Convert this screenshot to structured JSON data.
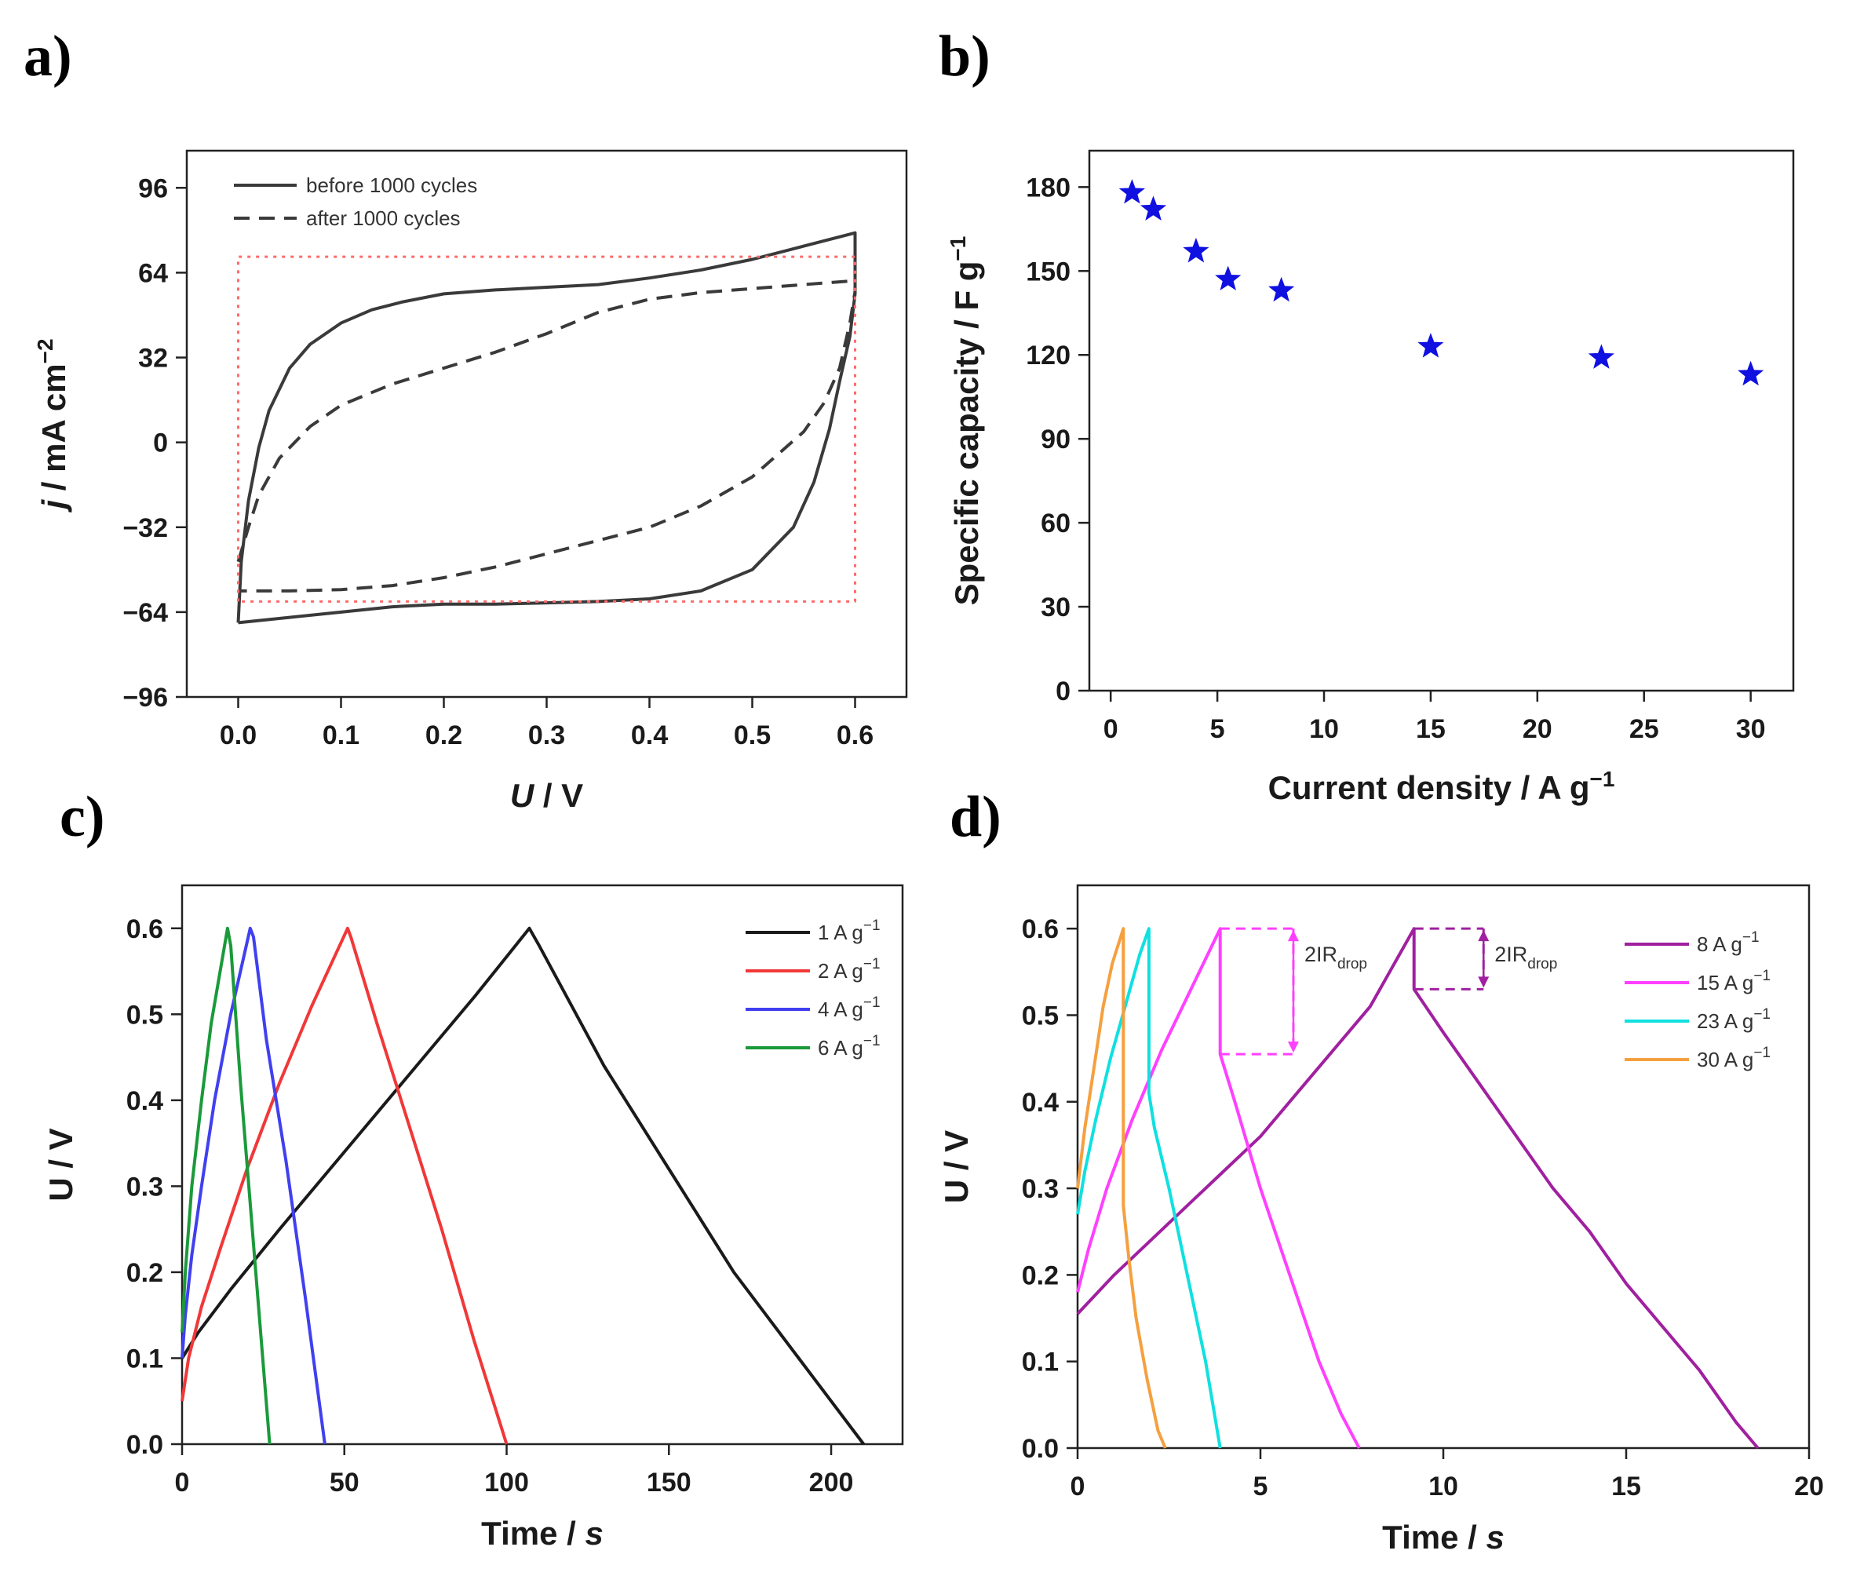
{
  "figure": {
    "panels": [
      {
        "id": "a",
        "label": "a)"
      },
      {
        "id": "b",
        "label": "b)"
      },
      {
        "id": "c",
        "label": "c)"
      },
      {
        "id": "d",
        "label": "d)"
      }
    ]
  },
  "chart_data": [
    {
      "id": "a",
      "type": "line",
      "title": "",
      "xlabel_italic": "U",
      "xlabel_rest": " / V",
      "ylabel_italic": "j",
      "ylabel_rest": " / mA cm",
      "ylabel_sup": "−2",
      "xlim": [
        -0.05,
        0.65
      ],
      "ylim": [
        -96,
        110
      ],
      "xticks": [
        0.0,
        0.1,
        0.2,
        0.3,
        0.4,
        0.5,
        0.6
      ],
      "xtick_labels": [
        "0.0",
        "0.1",
        "0.2",
        "0.3",
        "0.4",
        "0.5",
        "0.6"
      ],
      "yticks": [
        -96,
        -64,
        -32,
        0,
        32,
        64,
        96
      ],
      "ytick_labels": [
        "−96",
        "−64",
        "−32",
        "0",
        "32",
        "64",
        "96"
      ],
      "legend_position": "top-left",
      "series": [
        {
          "name": "before 1000 cycles",
          "color": "#3a3a3a",
          "dash": "solid",
          "x": [
            0.0,
            0.003,
            0.01,
            0.02,
            0.03,
            0.05,
            0.07,
            0.1,
            0.13,
            0.16,
            0.2,
            0.25,
            0.3,
            0.35,
            0.4,
            0.45,
            0.5,
            0.55,
            0.6,
            0.6,
            0.595,
            0.585,
            0.575,
            0.56,
            0.54,
            0.5,
            0.45,
            0.4,
            0.35,
            0.3,
            0.25,
            0.2,
            0.15,
            0.1,
            0.05,
            0.0
          ],
          "y": [
            -68,
            -45,
            -22,
            -2,
            12,
            28,
            37,
            45,
            50,
            53,
            56,
            57.5,
            58.5,
            59.5,
            62,
            65,
            69,
            74,
            79,
            56,
            40,
            23,
            5,
            -15,
            -32,
            -48,
            -56,
            -59,
            -60,
            -60.5,
            -61,
            -61,
            -62,
            -64,
            -66,
            -68
          ]
        },
        {
          "name": "after 1000 cycles",
          "color": "#3a3a3a",
          "dash": "dashed",
          "x": [
            0.0,
            0.01,
            0.02,
            0.04,
            0.07,
            0.1,
            0.15,
            0.2,
            0.25,
            0.3,
            0.35,
            0.4,
            0.45,
            0.5,
            0.55,
            0.6,
            0.6,
            0.595,
            0.585,
            0.57,
            0.55,
            0.5,
            0.45,
            0.4,
            0.35,
            0.3,
            0.25,
            0.2,
            0.15,
            0.1,
            0.05,
            0.0
          ],
          "y": [
            -45,
            -32,
            -20,
            -6,
            6,
            14,
            22,
            28,
            34,
            41,
            49,
            54,
            56.5,
            58,
            59.5,
            61,
            57,
            45,
            28,
            15,
            4,
            -13,
            -24,
            -32,
            -37,
            -42,
            -47,
            -51,
            -54,
            -55.5,
            -56,
            -56
          ]
        },
        {
          "name": "",
          "color": "#ff6a6a",
          "dash": "dotted",
          "x": [
            0.0,
            0.0,
            0.6,
            0.6,
            0.0
          ],
          "y": [
            -60,
            70,
            70,
            -60,
            -60
          ]
        }
      ]
    },
    {
      "id": "b",
      "type": "scatter",
      "title": "",
      "xlabel": "Current density / A g",
      "xlabel_sup": "−1",
      "ylabel": "Specific capacity / F g",
      "ylabel_sup": "−1",
      "xlim": [
        -1,
        32
      ],
      "ylim": [
        0,
        193
      ],
      "xticks": [
        0,
        5,
        10,
        15,
        20,
        25,
        30
      ],
      "xtick_labels": [
        "0",
        "5",
        "10",
        "15",
        "20",
        "25",
        "30"
      ],
      "yticks": [
        0,
        30,
        60,
        90,
        120,
        150,
        180
      ],
      "ytick_labels": [
        "0",
        "30",
        "60",
        "90",
        "120",
        "150",
        "180"
      ],
      "marker": "star",
      "color": "#1010e0",
      "points": {
        "x": [
          1,
          2,
          4,
          5.5,
          8,
          15,
          23,
          30
        ],
        "y": [
          178,
          172,
          157,
          147,
          143,
          123,
          119,
          113
        ]
      }
    },
    {
      "id": "c",
      "type": "line",
      "title": "",
      "xlabel_main": "Time / ",
      "xlabel_italic": "s",
      "ylabel": "U / V",
      "xlim": [
        0,
        222
      ],
      "ylim": [
        0,
        0.65
      ],
      "xticks": [
        0,
        50,
        100,
        150,
        200
      ],
      "xtick_labels": [
        "0",
        "50",
        "100",
        "150",
        "200"
      ],
      "yticks": [
        0,
        0.1,
        0.2,
        0.3,
        0.4,
        0.5,
        0.6
      ],
      "ytick_labels": [
        "0.0",
        "0.1",
        "0.2",
        "0.3",
        "0.4",
        "0.5",
        "0.6"
      ],
      "legend_position": "top-right",
      "series": [
        {
          "name": "1 A g",
          "sup": "−1",
          "color": "#1a1a1a",
          "x": [
            0,
            5,
            15,
            30,
            50,
            70,
            90,
            107,
            110,
            130,
            150,
            170,
            190,
            210
          ],
          "y": [
            0.1,
            0.13,
            0.18,
            0.25,
            0.34,
            0.43,
            0.52,
            0.6,
            0.58,
            0.44,
            0.32,
            0.2,
            0.1,
            0
          ]
        },
        {
          "name": "2 A g",
          "sup": "−1",
          "color": "#f03838",
          "x": [
            0,
            2,
            6,
            12,
            20,
            30,
            40,
            51,
            52,
            60,
            70,
            80,
            90,
            100
          ],
          "y": [
            0.05,
            0.1,
            0.16,
            0.23,
            0.32,
            0.42,
            0.51,
            0.6,
            0.59,
            0.49,
            0.37,
            0.25,
            0.12,
            0
          ]
        },
        {
          "name": "4 A g",
          "sup": "−1",
          "color": "#4040f0",
          "x": [
            0,
            1,
            3,
            6,
            10,
            15,
            21,
            22,
            26,
            32,
            38,
            44
          ],
          "y": [
            0.1,
            0.15,
            0.22,
            0.3,
            0.4,
            0.5,
            0.6,
            0.59,
            0.47,
            0.33,
            0.17,
            0
          ]
        },
        {
          "name": "6 A g",
          "sup": "−1",
          "color": "#1a9a3a",
          "x": [
            0,
            1,
            3,
            6,
            9,
            14,
            15,
            18,
            21,
            24,
            27
          ],
          "y": [
            0.13,
            0.2,
            0.3,
            0.4,
            0.49,
            0.6,
            0.58,
            0.42,
            0.28,
            0.14,
            0
          ]
        }
      ]
    },
    {
      "id": "d",
      "type": "line",
      "title": "",
      "xlabel_main": "Time / ",
      "xlabel_italic": "s",
      "ylabel": "U / V",
      "xlim": [
        0,
        20
      ],
      "ylim": [
        0,
        0.65
      ],
      "xticks": [
        0,
        5,
        10,
        15,
        20
      ],
      "xtick_labels": [
        "0",
        "5",
        "10",
        "15",
        "20"
      ],
      "yticks": [
        0,
        0.1,
        0.2,
        0.3,
        0.4,
        0.5,
        0.6
      ],
      "ytick_labels": [
        "0.0",
        "0.1",
        "0.2",
        "0.3",
        "0.4",
        "0.5",
        "0.6"
      ],
      "legend_position": "top-right",
      "annotations": [
        {
          "text": "2IR",
          "sub": "drop",
          "color": "#ff40ff",
          "x_left": 3.9,
          "x_right": 5.9,
          "y_top": 0.6,
          "y_bottom": 0.455
        },
        {
          "text": "2IR",
          "sub": "drop",
          "color": "#a020a0",
          "x_left": 9.2,
          "x_right": 11.1,
          "y_top": 0.6,
          "y_bottom": 0.53
        }
      ],
      "series": [
        {
          "name": "8 A g",
          "sup": "−1",
          "color": "#a020a0",
          "x": [
            0,
            1,
            2,
            3,
            4,
            5,
            6,
            7,
            8,
            9.2,
            9.2,
            10,
            11,
            12,
            13,
            14,
            15,
            16,
            17,
            18,
            18.6
          ],
          "y": [
            0.155,
            0.2,
            0.24,
            0.28,
            0.32,
            0.36,
            0.41,
            0.46,
            0.51,
            0.6,
            0.53,
            0.48,
            0.42,
            0.36,
            0.3,
            0.25,
            0.19,
            0.14,
            0.09,
            0.03,
            0
          ]
        },
        {
          "name": "15 A g",
          "sup": "−1",
          "color": "#ff40ff",
          "x": [
            0,
            0.3,
            0.8,
            1.5,
            2.3,
            3.1,
            3.9,
            3.9,
            4.3,
            5,
            5.8,
            6.6,
            7.2,
            7.7
          ],
          "y": [
            0.18,
            0.23,
            0.3,
            0.38,
            0.46,
            0.53,
            0.6,
            0.455,
            0.4,
            0.3,
            0.2,
            0.1,
            0.04,
            0
          ]
        },
        {
          "name": "23 A g",
          "sup": "−1",
          "color": "#10e0e0",
          "x": [
            0,
            0.2,
            0.5,
            0.9,
            1.3,
            1.7,
            1.95,
            1.95,
            2.1,
            2.5,
            3,
            3.5,
            3.9
          ],
          "y": [
            0.27,
            0.32,
            0.38,
            0.45,
            0.51,
            0.57,
            0.6,
            0.41,
            0.37,
            0.3,
            0.2,
            0.1,
            0
          ]
        },
        {
          "name": "30 A g",
          "sup": "−1",
          "color": "#f5a040",
          "x": [
            0,
            0.2,
            0.45,
            0.7,
            0.95,
            1.25,
            1.25,
            1.4,
            1.6,
            1.9,
            2.2,
            2.4
          ],
          "y": [
            0.3,
            0.37,
            0.44,
            0.51,
            0.56,
            0.6,
            0.28,
            0.22,
            0.15,
            0.08,
            0.02,
            0
          ]
        }
      ]
    }
  ]
}
